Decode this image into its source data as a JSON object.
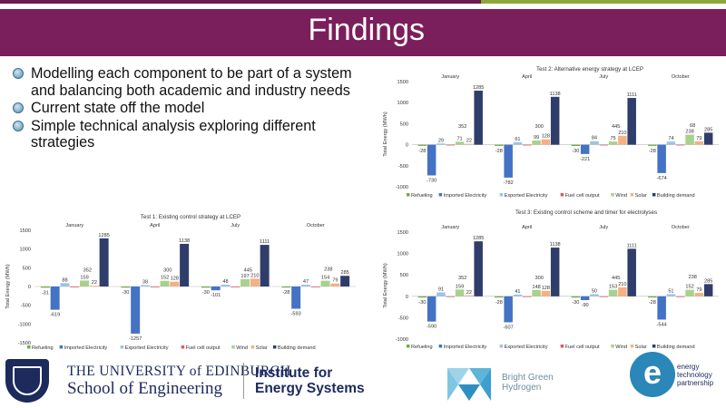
{
  "slide": {
    "title": "Findings",
    "bullets": [
      "Modelling each component to be part of a system and balancing both academic and industry needs",
      "Current state off the model",
      "Simple technical analysis exploring different strategies"
    ],
    "logos": {
      "uoe_line1": "THE UNIVERSITY of EDINBURGH",
      "uoe_line2": "School of Engineering",
      "ies": "Institute for Energy Systems",
      "bgh": "Bright Green Hydrogen",
      "etp": "energy technology partnership"
    }
  },
  "chart_data": [
    {
      "type": "bar",
      "title": "Test 2: Alternative energy strategy at LCEP",
      "ylabel": "Total Energy (MWh)",
      "ylim": [
        -1000,
        1500
      ],
      "yticks": [
        1500,
        1000,
        500,
        0,
        -500,
        -1000
      ],
      "month_labels": [
        "January",
        "April",
        "July",
        "October"
      ],
      "legend": [
        "Refueling",
        "Imported Electricity",
        "Exported Electricity",
        "Fuel cell output",
        "Wind",
        "Solar",
        "Building demand"
      ],
      "colors": [
        "#70ad47",
        "#4472c4",
        "#9dc3e6",
        "#e05a5a",
        "#a9d18e",
        "#f4b183",
        "#2f3d6b"
      ],
      "groups": [
        [
          -28,
          -730,
          29,
          0,
          71,
          22,
          1285
        ],
        [
          -28,
          -782,
          61,
          0,
          99,
          128,
          1138
        ],
        [
          -30,
          -221,
          84,
          0,
          75,
          210,
          1111
        ],
        [
          -28,
          -674,
          74,
          0,
          238,
          79,
          285
        ]
      ],
      "data_labels": [
        [
          "-28",
          "-730",
          "29",
          "",
          "71",
          "22",
          "1285"
        ],
        [
          "-28",
          "-782",
          "61",
          "",
          "99",
          "128",
          "1138"
        ],
        [
          "-30",
          "-221",
          "84",
          "",
          "75",
          "210",
          "1111"
        ],
        [
          "-28",
          "-674",
          "74",
          "",
          "238",
          "79",
          "285"
        ]
      ],
      "extra_labels": [
        "352",
        "300",
        "445",
        "68"
      ]
    },
    {
      "type": "bar",
      "title": "Test 1: Existing control strategy at LCEP",
      "ylabel": "Total Energy (MWh)",
      "ylim": [
        -1500,
        1500
      ],
      "yticks": [
        1500,
        1000,
        500,
        0,
        -500,
        -1000,
        -1500
      ],
      "month_labels": [
        "January",
        "April",
        "July",
        "October"
      ],
      "legend": [
        "Refueling",
        "Imported Electricity",
        "Exported Electricity",
        "Fuel cell output",
        "Wind",
        "Solar",
        "Building demand"
      ],
      "colors": [
        "#70ad47",
        "#4472c4",
        "#9dc3e6",
        "#e05a5a",
        "#a9d18e",
        "#f4b183",
        "#2f3d6b"
      ],
      "groups": [
        [
          -31,
          -619,
          88,
          0,
          159,
          22,
          1285
        ],
        [
          -30,
          -1257,
          38,
          0,
          152,
          128,
          1138
        ],
        [
          -30,
          -101,
          48,
          0,
          197,
          210,
          1111
        ],
        [
          -28,
          -593,
          47,
          0,
          154,
          79,
          285
        ]
      ],
      "data_labels": [
        [
          "-31",
          "-619",
          "88",
          "",
          "159",
          "22",
          "1285"
        ],
        [
          "-30",
          "-1257",
          "38",
          "",
          "152",
          "128",
          "1138"
        ],
        [
          "-30",
          "-101",
          "48",
          "",
          "197",
          "210",
          "1111"
        ],
        [
          "-28",
          "-593",
          "47",
          "",
          "154",
          "79",
          "285"
        ]
      ],
      "extra_labels": [
        "352",
        "300",
        "445",
        "238"
      ]
    },
    {
      "type": "bar",
      "title": "Test 3: Existing control scheme and timer for electrolyses",
      "ylabel": "Total Energy (MWh)",
      "ylim": [
        -1000,
        1500
      ],
      "yticks": [
        1500,
        1000,
        500,
        0,
        -500,
        -1000
      ],
      "month_labels": [
        "January",
        "April",
        "July",
        "October"
      ],
      "legend": [
        "Refueling",
        "Imported Electricity",
        "Exported Electricity",
        "Fuel cell output",
        "Wind",
        "Solar",
        "Building demand"
      ],
      "colors": [
        "#70ad47",
        "#4472c4",
        "#9dc3e6",
        "#e05a5a",
        "#a9d18e",
        "#f4b183",
        "#2f3d6b"
      ],
      "groups": [
        [
          -30,
          -590,
          91,
          0,
          159,
          22,
          1285
        ],
        [
          -28,
          -607,
          41,
          0,
          148,
          128,
          1138
        ],
        [
          -30,
          -90,
          50,
          0,
          153,
          210,
          1111
        ],
        [
          -28,
          -544,
          51,
          0,
          152,
          79,
          285
        ]
      ],
      "data_labels": [
        [
          "-30",
          "-590",
          "91",
          "",
          "159",
          "22",
          "1285"
        ],
        [
          "-28",
          "-607",
          "41",
          "",
          "148",
          "128",
          "1138"
        ],
        [
          "-30",
          "-90",
          "50",
          "",
          "153",
          "210",
          "1111"
        ],
        [
          "-28",
          "-544",
          "51",
          "",
          "152",
          "79",
          "285"
        ]
      ],
      "extra_labels": [
        "352",
        "300",
        "445",
        "238"
      ]
    }
  ]
}
